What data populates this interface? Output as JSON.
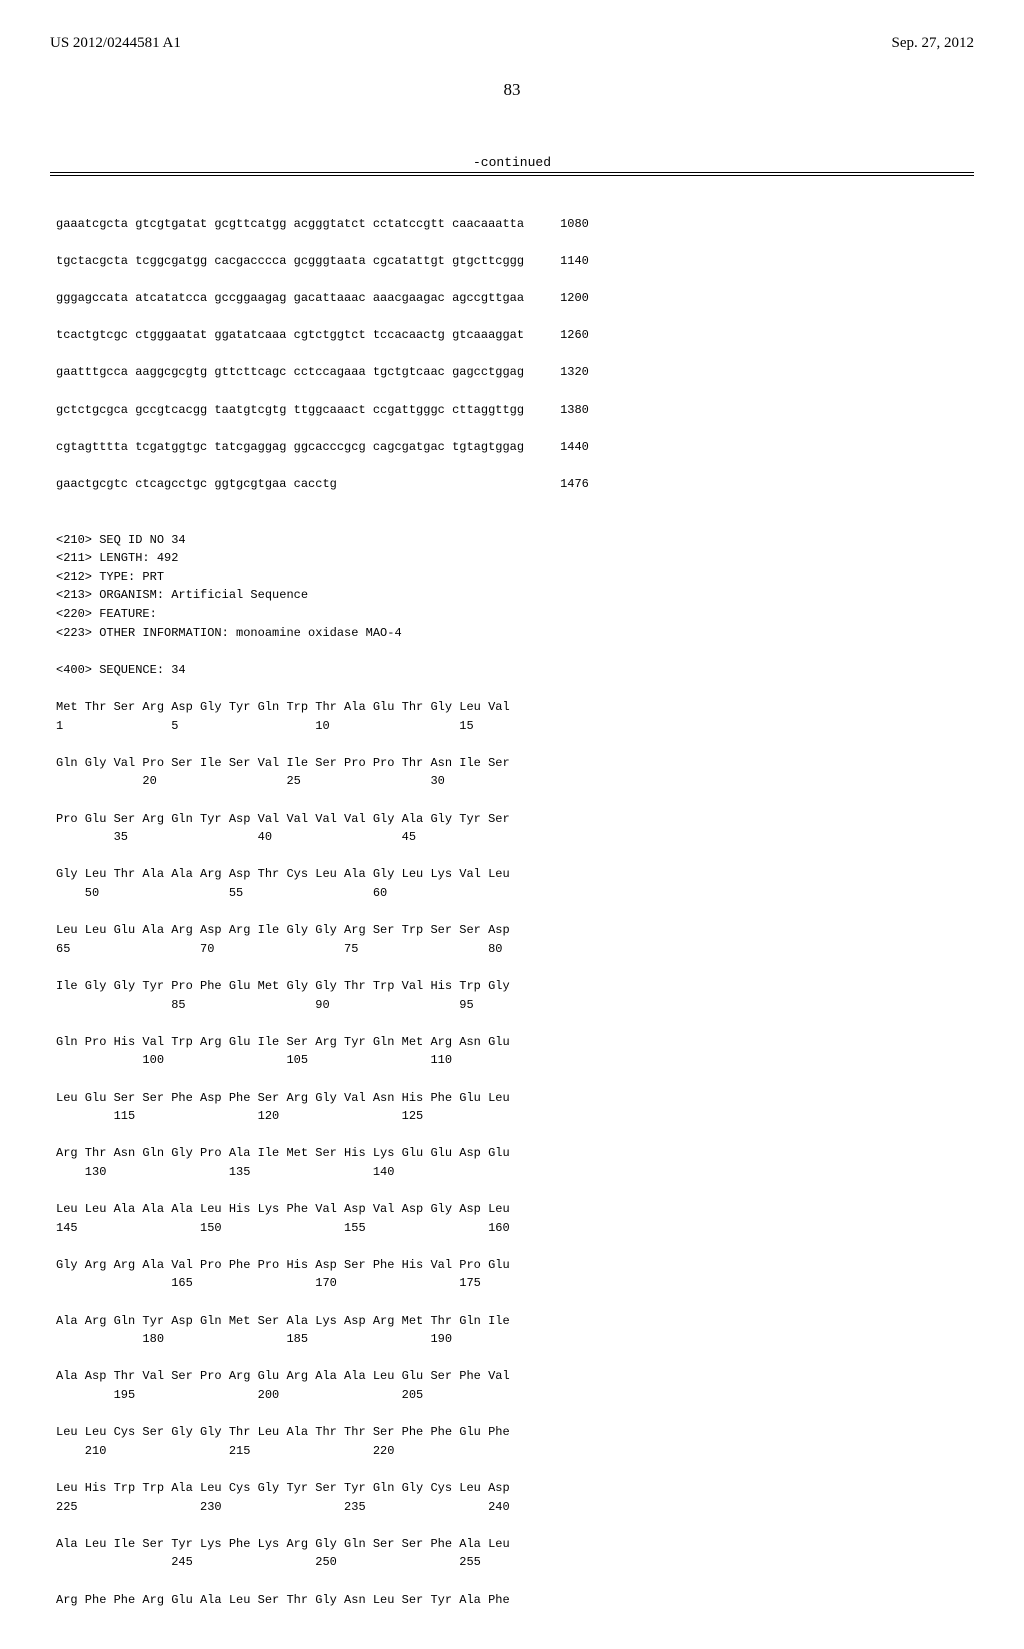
{
  "header": {
    "publication_number": "US 2012/0244581 A1",
    "publication_date": "Sep. 27, 2012"
  },
  "page_number": "83",
  "continued_label": "-continued",
  "nucleotide_rows": [
    {
      "seq": "gaaatcgcta gtcgtgatat gcgttcatgg acgggtatct cctatccgtt caacaaatta",
      "pos": "1080"
    },
    {
      "seq": "tgctacgcta tcggcgatgg cacgacccca gcgggtaata cgcatattgt gtgcttcggg",
      "pos": "1140"
    },
    {
      "seq": "gggagccata atcatatcca gccggaagag gacattaaac aaacgaagac agccgttgaa",
      "pos": "1200"
    },
    {
      "seq": "tcactgtcgc ctgggaatat ggatatcaaa cgtctggtct tccacaactg gtcaaaggat",
      "pos": "1260"
    },
    {
      "seq": "gaatttgcca aaggcgcgtg gttcttcagc cctccagaaa tgctgtcaac gagcctggag",
      "pos": "1320"
    },
    {
      "seq": "gctctgcgca gccgtcacgg taatgtcgtg ttggcaaact ccgattgggc cttaggttgg",
      "pos": "1380"
    },
    {
      "seq": "cgtagtttta tcgatggtgc tatcgaggag ggcacccgcg cagcgatgac tgtagtggag",
      "pos": "1440"
    },
    {
      "seq": "gaactgcgtc ctcagcctgc ggtgcgtgaa cacctg",
      "pos": "1476"
    }
  ],
  "seq_header": {
    "l1": "<210> SEQ ID NO 34",
    "l2": "<211> LENGTH: 492",
    "l3": "<212> TYPE: PRT",
    "l4": "<213> ORGANISM: Artificial Sequence",
    "l5": "<220> FEATURE:",
    "l6": "<223> OTHER INFORMATION: monoamine oxidase MAO-4",
    "l7": "<400> SEQUENCE: 34"
  },
  "protein_rows": [
    {
      "aa": "Met Thr Ser Arg Asp Gly Tyr Gln Trp Thr Ala Glu Thr Gly Leu Val",
      "nums": "1               5                   10                  15"
    },
    {
      "aa": "Gln Gly Val Pro Ser Ile Ser Val Ile Ser Pro Pro Thr Asn Ile Ser",
      "nums": "            20                  25                  30"
    },
    {
      "aa": "Pro Glu Ser Arg Gln Tyr Asp Val Val Val Val Gly Ala Gly Tyr Ser",
      "nums": "        35                  40                  45"
    },
    {
      "aa": "Gly Leu Thr Ala Ala Arg Asp Thr Cys Leu Ala Gly Leu Lys Val Leu",
      "nums": "    50                  55                  60"
    },
    {
      "aa": "Leu Leu Glu Ala Arg Asp Arg Ile Gly Gly Arg Ser Trp Ser Ser Asp",
      "nums": "65                  70                  75                  80"
    },
    {
      "aa": "Ile Gly Gly Tyr Pro Phe Glu Met Gly Gly Thr Trp Val His Trp Gly",
      "nums": "                85                  90                  95"
    },
    {
      "aa": "Gln Pro His Val Trp Arg Glu Ile Ser Arg Tyr Gln Met Arg Asn Glu",
      "nums": "            100                 105                 110"
    },
    {
      "aa": "Leu Glu Ser Ser Phe Asp Phe Ser Arg Gly Val Asn His Phe Glu Leu",
      "nums": "        115                 120                 125"
    },
    {
      "aa": "Arg Thr Asn Gln Gly Pro Ala Ile Met Ser His Lys Glu Glu Asp Glu",
      "nums": "    130                 135                 140"
    },
    {
      "aa": "Leu Leu Ala Ala Ala Leu His Lys Phe Val Asp Val Asp Gly Asp Leu",
      "nums": "145                 150                 155                 160"
    },
    {
      "aa": "Gly Arg Arg Ala Val Pro Phe Pro His Asp Ser Phe His Val Pro Glu",
      "nums": "                165                 170                 175"
    },
    {
      "aa": "Ala Arg Gln Tyr Asp Gln Met Ser Ala Lys Asp Arg Met Thr Gln Ile",
      "nums": "            180                 185                 190"
    },
    {
      "aa": "Ala Asp Thr Val Ser Pro Arg Glu Arg Ala Ala Leu Glu Ser Phe Val",
      "nums": "        195                 200                 205"
    },
    {
      "aa": "Leu Leu Cys Ser Gly Gly Thr Leu Ala Thr Thr Ser Phe Phe Glu Phe",
      "nums": "    210                 215                 220"
    },
    {
      "aa": "Leu His Trp Trp Ala Leu Cys Gly Tyr Ser Tyr Gln Gly Cys Leu Asp",
      "nums": "225                 230                 235                 240"
    },
    {
      "aa": "Ala Leu Ile Ser Tyr Lys Phe Lys Arg Gly Gln Ser Ser Phe Ala Leu",
      "nums": "                245                 250                 255"
    },
    {
      "aa": "Arg Phe Phe Arg Glu Ala Leu Ser Thr Gly Asn Leu Ser Tyr Ala Phe",
      "nums": ""
    }
  ]
}
